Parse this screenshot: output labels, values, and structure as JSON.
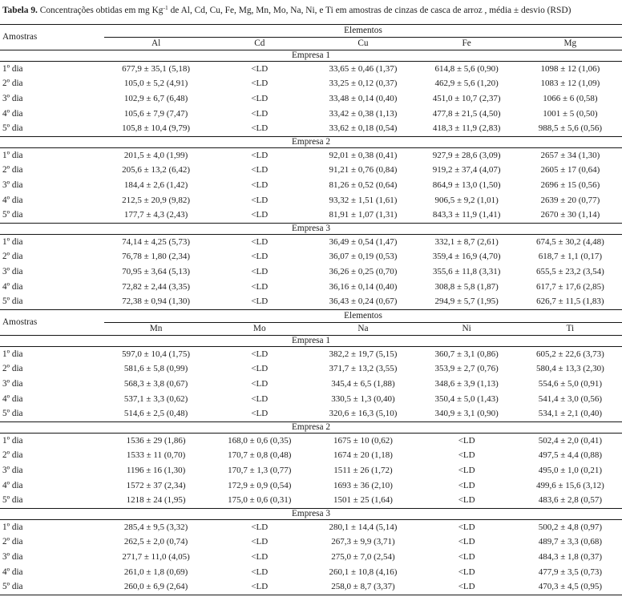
{
  "caption": {
    "label": "Tabela 9.",
    "text_before_sup": "Concentrações obtidas em mg Kg",
    "superscript": "-1",
    "text_after_sup": "de Al, Cd, Cu, Fe, Mg, Mn, Mo, Na, Ni, e Ti em amostras de cinzas de casca de arroz , média ± desvio (RSD)"
  },
  "table": {
    "amostras_label": "Amostras",
    "elementos_label": "Elementos",
    "halves": [
      {
        "elements": [
          "Al",
          "Cd",
          "Cu",
          "Fe",
          "Mg"
        ],
        "groups": [
          {
            "name": "Empresa 1",
            "rows": [
              {
                "label": "1º dia",
                "values": [
                  "677,9 ± 35,1 (5,18)",
                  "<LD",
                  "33,65 ± 0,46 (1,37)",
                  "614,8 ± 5,6 (0,90)",
                  "1098 ± 12 (1,06)"
                ]
              },
              {
                "label": "2º dia",
                "values": [
                  "105,0 ± 5,2 (4,91)",
                  "<LD",
                  "33,25 ± 0,12 (0,37)",
                  "462,9 ± 5,6 (1,20)",
                  "1083 ± 12 (1,09)"
                ]
              },
              {
                "label": "3º dia",
                "values": [
                  "102,9 ± 6,7 (6,48)",
                  "<LD",
                  "33,48 ± 0,14 (0,40)",
                  "451,0 ± 10,7 (2,37)",
                  "1066 ± 6 (0,58)"
                ]
              },
              {
                "label": "4º dia",
                "values": [
                  "105,6 ± 7,9 (7,47)",
                  "<LD",
                  "33,42 ± 0,38 (1,13)",
                  "477,8 ± 21,5 (4,50)",
                  "1001 ± 5 (0,50)"
                ]
              },
              {
                "label": "5º dia",
                "values": [
                  "105,8 ± 10,4 (9,79)",
                  "<LD",
                  "33,62 ± 0,18 (0,54)",
                  "418,3 ± 11,9 (2,83)",
                  "988,5 ± 5,6 (0,56)"
                ]
              }
            ]
          },
          {
            "name": "Empresa 2",
            "rows": [
              {
                "label": "1º dia",
                "values": [
                  "201,5 ± 4,0 (1,99)",
                  "<LD",
                  "92,01 ± 0,38 (0,41)",
                  "927,9 ± 28,6 (3,09)",
                  "2657 ± 34 (1,30)"
                ]
              },
              {
                "label": "2º dia",
                "values": [
                  "205,6 ± 13,2 (6,42)",
                  "<LD",
                  "91,21 ± 0,76 (0,84)",
                  "919,2 ± 37,4 (4,07)",
                  "2605 ± 17 (0,64)"
                ]
              },
              {
                "label": "3º dia",
                "values": [
                  "184,4 ± 2,6 (1,42)",
                  "<LD",
                  "81,26 ± 0,52 (0,64)",
                  "864,9 ± 13,0 (1,50)",
                  "2696 ± 15 (0,56)"
                ]
              },
              {
                "label": "4º dia",
                "values": [
                  "212,5 ± 20,9 (9,82)",
                  "<LD",
                  "93,32 ± 1,51 (1,61)",
                  "906,5 ± 9,2 (1,01)",
                  "2639 ± 20 (0,77)"
                ]
              },
              {
                "label": "5º dia",
                "values": [
                  "177,7 ± 4,3 (2,43)",
                  "<LD",
                  "81,91 ± 1,07 (1,31)",
                  "843,3 ± 11,9 (1,41)",
                  "2670 ± 30 (1,14)"
                ]
              }
            ]
          },
          {
            "name": "Empresa 3",
            "rows": [
              {
                "label": "1º dia",
                "values": [
                  "74,14 ± 4,25 (5,73)",
                  "<LD",
                  "36,49 ± 0,54 (1,47)",
                  "332,1 ± 8,7 (2,61)",
                  "674,5 ± 30,2 (4,48)"
                ]
              },
              {
                "label": "2º dia",
                "values": [
                  "76,78 ± 1,80 (2,34)",
                  "<LD",
                  "36,07 ± 0,19 (0,53)",
                  "359,4 ± 16,9 (4,70)",
                  "618,7 ± 1,1 (0,17)"
                ]
              },
              {
                "label": "3º dia",
                "values": [
                  "70,95 ± 3,64 (5,13)",
                  "<LD",
                  "36,26 ± 0,25 (0,70)",
                  "355,6 ± 11,8 (3,31)",
                  "655,5 ± 23,2 (3,54)"
                ]
              },
              {
                "label": "4º dia",
                "values": [
                  "72,82 ± 2,44 (3,35)",
                  "<LD",
                  "36,16 ± 0,14 (0,40)",
                  "308,8 ± 5,8 (1,87)",
                  "617,7 ± 17,6 (2,85)"
                ]
              },
              {
                "label": "5º dia",
                "values": [
                  "72,38 ± 0,94 (1,30)",
                  "<LD",
                  "36,43 ± 0,24 (0,67)",
                  "294,9 ± 5,7 (1,95)",
                  "626,7 ± 11,5 (1,83)"
                ]
              }
            ]
          }
        ]
      },
      {
        "elements": [
          "Mn",
          "Mo",
          "Na",
          "Ni",
          "Ti"
        ],
        "groups": [
          {
            "name": "Empresa 1",
            "rows": [
              {
                "label": "1º dia",
                "values": [
                  "597,0 ± 10,4 (1,75)",
                  "<LD",
                  "382,2 ± 19,7 (5,15)",
                  "360,7 ± 3,1 (0,86)",
                  "605,2 ± 22,6 (3,73)"
                ]
              },
              {
                "label": "2º dia",
                "values": [
                  "581,6 ± 5,8 (0,99)",
                  "<LD",
                  "371,7 ± 13,2 (3,55)",
                  "353,9 ± 2,7 (0,76)",
                  "580,4 ± 13,3 (2,30)"
                ]
              },
              {
                "label": "3º dia",
                "values": [
                  "568,3 ± 3,8 (0,67)",
                  "<LD",
                  "345,4 ± 6,5 (1,88)",
                  "348,6 ± 3,9 (1,13)",
                  "554,6 ± 5,0 (0,91)"
                ]
              },
              {
                "label": "4º dia",
                "values": [
                  "537,1 ± 3,3 (0,62)",
                  "<LD",
                  "330,5 ± 1,3 (0,40)",
                  "350,4 ± 5,0 (1,43)",
                  "541,4 ± 3,0 (0,56)"
                ]
              },
              {
                "label": "5º dia",
                "values": [
                  "514,6 ± 2,5 (0,48)",
                  "<LD",
                  "320,6 ± 16,3 (5,10)",
                  "340,9 ± 3,1 (0,90)",
                  "534,1 ± 2,1 (0,40)"
                ]
              }
            ]
          },
          {
            "name": "Empresa 2",
            "rows": [
              {
                "label": "1º dia",
                "values": [
                  "1536 ± 29 (1,86)",
                  "168,0 ± 0,6 (0,35)",
                  "1675 ± 10 (0,62)",
                  "<LD",
                  "502,4 ± 2,0 (0,41)"
                ]
              },
              {
                "label": "2º dia",
                "values": [
                  "1533 ± 11 (0,70)",
                  "170,7 ± 0,8 (0,48)",
                  "1674 ± 20 (1,18)",
                  "<LD",
                  "497,5 ± 4,4 (0,88)"
                ]
              },
              {
                "label": "3º dia",
                "values": [
                  "1196 ± 16 (1,30)",
                  "170,7 ± 1,3 (0,77)",
                  "1511 ± 26 (1,72)",
                  "<LD",
                  "495,0 ± 1,0 (0,21)"
                ]
              },
              {
                "label": "4º dia",
                "values": [
                  "1572 ± 37 (2,34)",
                  "172,9 ± 0,9 (0,54)",
                  "1693 ± 36 (2,10)",
                  "<LD",
                  "499,6 ± 15,6 (3,12)"
                ]
              },
              {
                "label": "5º dia",
                "values": [
                  "1218 ± 24 (1,95)",
                  "175,0 ± 0,6 (0,31)",
                  "1501 ± 25 (1,64)",
                  "<LD",
                  "483,6 ± 2,8 (0,57)"
                ]
              }
            ]
          },
          {
            "name": "Empresa 3",
            "rows": [
              {
                "label": "1º dia",
                "values": [
                  "285,4 ± 9,5 (3,32)",
                  "<LD",
                  "280,1 ± 14,4 (5,14)",
                  "<LD",
                  "500,2 ± 4,8 (0,97)"
                ]
              },
              {
                "label": "2º dia",
                "values": [
                  "262,5 ± 2,0 (0,74)",
                  "<LD",
                  "267,3 ± 9,9 (3,71)",
                  "<LD",
                  "489,7 ± 3,3 (0,68)"
                ]
              },
              {
                "label": "3º dia",
                "values": [
                  "271,7 ± 11,0 (4,05)",
                  "<LD",
                  "275,0 ± 7,0 (2,54)",
                  "<LD",
                  "484,3 ± 1,8 (0,37)"
                ]
              },
              {
                "label": "4º dia",
                "values": [
                  "261,0 ± 1,8 (0,69)",
                  "<LD",
                  "260,1 ± 10,8 (4,16)",
                  "<LD",
                  "477,9 ± 3,5 (0,73)"
                ]
              },
              {
                "label": "5º dia",
                "values": [
                  "260,0 ± 6,9 (2,64)",
                  "<LD",
                  "258,0 ± 8,7 (3,37)",
                  "<LD",
                  "470,3 ± 4,5 (0,95)"
                ]
              }
            ]
          }
        ]
      }
    ]
  },
  "colors": {
    "text": "#1d1d1d",
    "rule": "#151515",
    "background": "#ffffff"
  }
}
